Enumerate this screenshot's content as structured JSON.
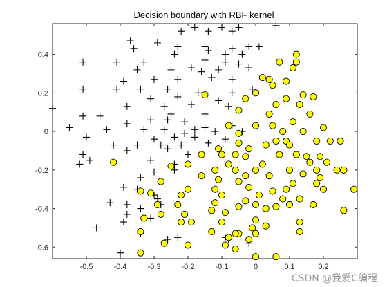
{
  "chart_data": {
    "type": "scatter",
    "title": "Decision boundary with RBF kernel",
    "xlabel": "",
    "ylabel": "",
    "xlim": [
      -0.6,
      0.3
    ],
    "ylim": [
      -0.66,
      0.56
    ],
    "x_ticks": [
      -0.5,
      -0.4,
      -0.3,
      -0.2,
      -0.1,
      0,
      0.1,
      0.2
    ],
    "x_tick_labels": [
      "-0.5",
      "-0.4",
      "-0.3",
      "-0.2",
      "-0.1",
      "0",
      "0.1",
      "0.2"
    ],
    "y_ticks": [
      0.4,
      0.2,
      0,
      -0.2,
      -0.4,
      -0.6
    ],
    "y_tick_labels": [
      "0.4",
      "0.2",
      "0",
      "-0.2",
      "-0.4",
      "-0.6"
    ],
    "grid": false,
    "series": [
      {
        "marker": "plus",
        "color": "#000000",
        "points": [
          [
            -0.18,
            0.54
          ],
          [
            -0.1,
            0.54
          ],
          [
            -0.05,
            0.54
          ],
          [
            -0.07,
            0.52
          ],
          [
            0.06,
            0.55
          ],
          [
            -0.14,
            0.52
          ],
          [
            -0.22,
            0.52
          ],
          [
            -0.37,
            0.47
          ],
          [
            -0.29,
            0.46
          ],
          [
            -0.23,
            0.44
          ],
          [
            -0.36,
            0.43
          ],
          [
            -0.15,
            0.44
          ],
          [
            -0.07,
            0.43
          ],
          [
            -0.14,
            0.42
          ],
          [
            -0.02,
            0.44
          ],
          [
            0.01,
            0.44
          ],
          [
            -0.24,
            0.4
          ],
          [
            -0.09,
            0.4
          ],
          [
            -0.04,
            0.4
          ],
          [
            -0.51,
            0.36
          ],
          [
            -0.41,
            0.36
          ],
          [
            -0.33,
            0.36
          ],
          [
            -0.15,
            0.37
          ],
          [
            -0.09,
            0.36
          ],
          [
            -0.19,
            0.33
          ],
          [
            -0.05,
            0.35
          ],
          [
            -0.35,
            0.32
          ],
          [
            -0.25,
            0.32
          ],
          [
            -0.16,
            0.31
          ],
          [
            -0.11,
            0.32
          ],
          [
            -0.02,
            0.33
          ],
          [
            -0.3,
            0.27
          ],
          [
            -0.23,
            0.27
          ],
          [
            -0.13,
            0.28
          ],
          [
            -0.07,
            0.27
          ],
          [
            -0.39,
            0.26
          ],
          [
            -0.41,
            0.22
          ],
          [
            -0.34,
            0.22
          ],
          [
            -0.51,
            0.22
          ],
          [
            -0.26,
            0.22
          ],
          [
            -0.17,
            0.2
          ],
          [
            -0.15,
            0.2
          ],
          [
            -0.07,
            0.2
          ],
          [
            -0.01,
            0.22
          ],
          [
            -0.31,
            0.17
          ],
          [
            -0.23,
            0.18
          ],
          [
            -0.11,
            0.16
          ],
          [
            -0.19,
            0.14
          ],
          [
            -0.38,
            0.13
          ],
          [
            -0.27,
            0.13
          ],
          [
            -0.08,
            0.13
          ],
          [
            -0.6,
            0.12
          ],
          [
            -0.51,
            0.08
          ],
          [
            -0.46,
            0.08
          ],
          [
            -0.25,
            0.09
          ],
          [
            -0.15,
            0.09
          ],
          [
            -0.26,
            0.06
          ],
          [
            -0.38,
            0.04
          ],
          [
            -0.31,
            0.06
          ],
          [
            -0.21,
            0.05
          ],
          [
            -0.15,
            0.02
          ],
          [
            -0.07,
            0.03
          ],
          [
            -0.55,
            0.02
          ],
          [
            -0.44,
            0.01
          ],
          [
            -0.33,
            0.01
          ],
          [
            -0.27,
            0.01
          ],
          [
            -0.18,
            0.01
          ],
          [
            -0.12,
            0.0
          ],
          [
            -0.04,
            0.0
          ],
          [
            -0.21,
            -0.01
          ],
          [
            -0.5,
            -0.03
          ],
          [
            -0.3,
            -0.04
          ],
          [
            -0.24,
            -0.03
          ],
          [
            -0.18,
            -0.03
          ],
          [
            -0.09,
            -0.04
          ],
          [
            -0.42,
            -0.07
          ],
          [
            -0.35,
            -0.07
          ],
          [
            -0.28,
            -0.07
          ],
          [
            -0.22,
            -0.07
          ],
          [
            -0.14,
            -0.06
          ],
          [
            -0.38,
            -0.1
          ],
          [
            -0.26,
            -0.09
          ],
          [
            -0.2,
            -0.12
          ],
          [
            -0.51,
            -0.12
          ],
          [
            -0.49,
            -0.15
          ],
          [
            -0.52,
            -0.17
          ],
          [
            -0.31,
            -0.15
          ],
          [
            -0.24,
            -0.17
          ],
          [
            -0.3,
            -0.21
          ],
          [
            -0.34,
            -0.24
          ],
          [
            -0.24,
            -0.2
          ],
          [
            -0.28,
            -0.26
          ],
          [
            -0.39,
            -0.29
          ],
          [
            -0.35,
            -0.3
          ],
          [
            -0.3,
            -0.33
          ],
          [
            -0.29,
            -0.35
          ],
          [
            -0.43,
            -0.37
          ],
          [
            -0.38,
            -0.38
          ],
          [
            -0.34,
            -0.4
          ],
          [
            -0.28,
            -0.38
          ],
          [
            -0.38,
            -0.43
          ],
          [
            -0.39,
            -0.47
          ],
          [
            -0.31,
            -0.45
          ],
          [
            -0.47,
            -0.5
          ],
          [
            -0.34,
            -0.53
          ],
          [
            -0.23,
            -0.55
          ],
          [
            -0.26,
            -0.56
          ],
          [
            -0.4,
            -0.63
          ],
          [
            -0.08,
            -0.56
          ],
          [
            -0.02,
            -0.58
          ],
          [
            -0.09,
            -0.55
          ]
        ]
      },
      {
        "marker": "circle",
        "color": "#ffff00",
        "points": [
          [
            0.12,
            0.4
          ],
          [
            0.07,
            0.36
          ],
          [
            0.11,
            0.33
          ],
          [
            0.12,
            0.36
          ],
          [
            0.04,
            0.27
          ],
          [
            0.05,
            0.24
          ],
          [
            0.09,
            0.26
          ],
          [
            0.02,
            0.28
          ],
          [
            -0.15,
            0.19
          ],
          [
            0.0,
            0.2
          ],
          [
            -0.03,
            0.17
          ],
          [
            0.09,
            0.17
          ],
          [
            0.06,
            0.14
          ],
          [
            0.14,
            0.19
          ],
          [
            0.17,
            0.18
          ],
          [
            0.13,
            0.14
          ],
          [
            -0.05,
            0.11
          ],
          [
            0.04,
            0.09
          ],
          [
            0.16,
            0.09
          ],
          [
            -0.08,
            0.03
          ],
          [
            0.0,
            0.03
          ],
          [
            0.05,
            0.03
          ],
          [
            0.11,
            0.05
          ],
          [
            -0.05,
            -0.01
          ],
          [
            0.08,
            0.0
          ],
          [
            0.14,
            0.0
          ],
          [
            0.2,
            0.02
          ],
          [
            0.06,
            -0.05
          ],
          [
            0.09,
            -0.05
          ],
          [
            0.18,
            -0.05
          ],
          [
            0.22,
            -0.05
          ],
          [
            0.25,
            -0.05
          ],
          [
            0.03,
            -0.07
          ],
          [
            0.1,
            -0.07
          ],
          [
            -0.11,
            -0.09
          ],
          [
            -0.05,
            -0.06
          ],
          [
            -0.02,
            -0.09
          ],
          [
            -0.16,
            -0.12
          ],
          [
            -0.1,
            -0.12
          ],
          [
            -0.06,
            -0.12
          ],
          [
            -0.03,
            -0.13
          ],
          [
            0.07,
            -0.12
          ],
          [
            0.12,
            -0.12
          ],
          [
            0.15,
            -0.13
          ],
          [
            0.19,
            -0.13
          ],
          [
            -0.42,
            -0.16
          ],
          [
            -0.2,
            -0.17
          ],
          [
            -0.08,
            -0.17
          ],
          [
            0.02,
            -0.17
          ],
          [
            0.16,
            -0.16
          ],
          [
            0.21,
            -0.16
          ],
          [
            -0.25,
            -0.18
          ],
          [
            -0.12,
            -0.2
          ],
          [
            -0.06,
            -0.2
          ],
          [
            0.0,
            -0.2
          ],
          [
            0.1,
            -0.2
          ],
          [
            0.18,
            -0.2
          ],
          [
            0.24,
            -0.2
          ],
          [
            0.26,
            -0.2
          ],
          [
            -0.16,
            -0.23
          ],
          [
            -0.03,
            -0.23
          ],
          [
            0.04,
            -0.23
          ],
          [
            0.14,
            -0.22
          ],
          [
            0.19,
            -0.24
          ],
          [
            -0.28,
            -0.26
          ],
          [
            -0.11,
            -0.25
          ],
          [
            -0.05,
            -0.26
          ],
          [
            0.11,
            -0.27
          ],
          [
            0.18,
            -0.27
          ],
          [
            -0.2,
            -0.3
          ],
          [
            -0.12,
            -0.3
          ],
          [
            -0.02,
            -0.29
          ],
          [
            0.05,
            -0.31
          ],
          [
            0.09,
            -0.3
          ],
          [
            0.2,
            -0.3
          ],
          [
            0.29,
            -0.3
          ],
          [
            -0.34,
            -0.31
          ],
          [
            -0.31,
            -0.32
          ],
          [
            -0.22,
            -0.33
          ],
          [
            -0.1,
            -0.33
          ],
          [
            0.01,
            -0.33
          ],
          [
            0.08,
            -0.35
          ],
          [
            0.13,
            -0.35
          ],
          [
            -0.03,
            -0.36
          ],
          [
            -0.23,
            -0.38
          ],
          [
            -0.12,
            -0.37
          ],
          [
            0.0,
            -0.38
          ],
          [
            -0.29,
            -0.38
          ],
          [
            0.1,
            -0.38
          ],
          [
            0.17,
            -0.38
          ],
          [
            -0.05,
            -0.39
          ],
          [
            0.03,
            -0.4
          ],
          [
            0.06,
            -0.39
          ],
          [
            0.26,
            -0.41
          ],
          [
            -0.13,
            -0.41
          ],
          [
            -0.09,
            -0.42
          ],
          [
            -0.21,
            -0.43
          ],
          [
            -0.28,
            -0.43
          ],
          [
            -0.33,
            -0.45
          ],
          [
            -0.22,
            -0.47
          ],
          [
            -0.1,
            -0.47
          ],
          [
            0.0,
            -0.46
          ],
          [
            0.03,
            -0.49
          ],
          [
            0.13,
            -0.47
          ],
          [
            -0.19,
            -0.47
          ],
          [
            -0.01,
            -0.5
          ],
          [
            0.0,
            -0.53
          ],
          [
            -0.05,
            -0.53
          ],
          [
            -0.13,
            -0.52
          ],
          [
            0.13,
            -0.52
          ],
          [
            -0.34,
            -0.52
          ],
          [
            -0.06,
            -0.53
          ],
          [
            -0.08,
            -0.55
          ],
          [
            -0.02,
            -0.56
          ],
          [
            -0.27,
            -0.58
          ],
          [
            -0.2,
            -0.59
          ],
          [
            -0.09,
            -0.59
          ],
          [
            -0.06,
            -0.61
          ],
          [
            -0.34,
            -0.63
          ],
          [
            0.06,
            -0.65
          ],
          [
            0.0,
            -0.65
          ]
        ]
      }
    ]
  },
  "watermark": "CSDN @我爱C编程"
}
